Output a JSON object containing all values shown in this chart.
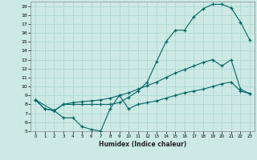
{
  "bg_color": "#cce9e5",
  "grid_color": "#b0d8d0",
  "line_color": "#006666",
  "xlim": [
    -0.5,
    23.5
  ],
  "ylim": [
    5,
    19.5
  ],
  "xticks": [
    0,
    1,
    2,
    3,
    4,
    5,
    6,
    7,
    8,
    9,
    10,
    11,
    12,
    13,
    14,
    15,
    16,
    17,
    18,
    19,
    20,
    21,
    22,
    23
  ],
  "yticks": [
    5,
    6,
    7,
    8,
    9,
    10,
    11,
    12,
    13,
    14,
    15,
    16,
    17,
    18,
    19
  ],
  "xlabel": "Humidex (Indice chaleur)",
  "line1_x": [
    0,
    1,
    2,
    3,
    4,
    5,
    6,
    7,
    8,
    9,
    10,
    11,
    12,
    13,
    14,
    15,
    16,
    17,
    18,
    19,
    20,
    21,
    22,
    23
  ],
  "line1_y": [
    8.5,
    7.5,
    7.3,
    6.5,
    6.5,
    5.5,
    5.2,
    5.0,
    7.5,
    9.0,
    7.5,
    8.0,
    8.2,
    8.4,
    8.7,
    9.0,
    9.3,
    9.5,
    9.7,
    10.0,
    10.3,
    10.5,
    9.5,
    9.2
  ],
  "line2_x": [
    0,
    1,
    2,
    3,
    4,
    5,
    6,
    7,
    8,
    9,
    10,
    11,
    12,
    13,
    14,
    15,
    16,
    17,
    18,
    19,
    20,
    21,
    22,
    23
  ],
  "line2_y": [
    8.5,
    7.5,
    7.3,
    8.0,
    8.2,
    8.3,
    8.4,
    8.5,
    8.7,
    9.0,
    9.3,
    9.7,
    10.1,
    10.5,
    11.0,
    11.5,
    11.9,
    12.3,
    12.7,
    13.0,
    12.3,
    13.0,
    9.7,
    9.2
  ],
  "line3_x": [
    0,
    2,
    3,
    4,
    5,
    6,
    7,
    8,
    9,
    10,
    11,
    12,
    13,
    14,
    15,
    16,
    17,
    18,
    19,
    20,
    21,
    22,
    23
  ],
  "line3_y": [
    8.5,
    7.3,
    8.0,
    8.0,
    8.0,
    8.0,
    8.0,
    8.0,
    8.2,
    8.8,
    9.5,
    10.5,
    12.8,
    15.0,
    16.3,
    16.3,
    17.8,
    18.7,
    19.2,
    19.2,
    18.8,
    17.2,
    15.2
  ]
}
